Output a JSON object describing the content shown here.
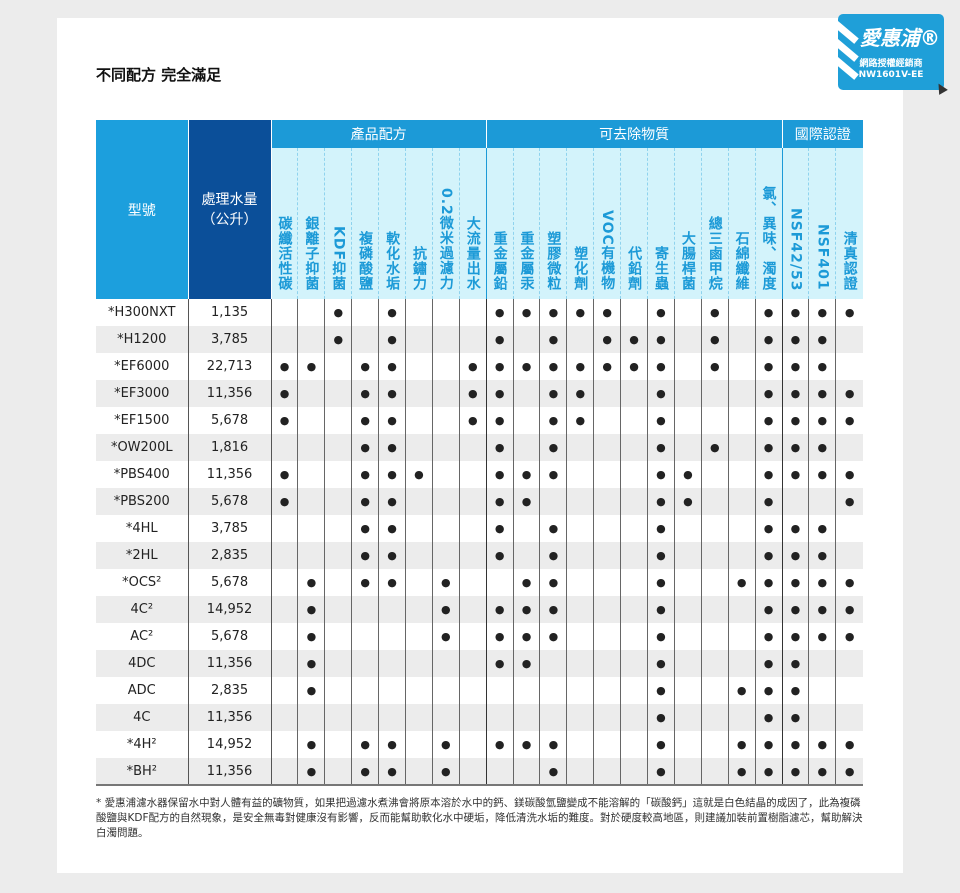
{
  "title": "不同配方 完全滿足",
  "badge": {
    "brand": "愛惠浦®",
    "line1": "網路授權經銷商",
    "line2": "NW1601V-EE"
  },
  "headers": {
    "model": "型號",
    "volume": "處理水量（公升）",
    "groups": [
      {
        "label": "產品配方",
        "span": 8
      },
      {
        "label": "可去除物質",
        "span": 11
      },
      {
        "label": "國際認證",
        "span": 3
      }
    ],
    "columns": [
      "碳纖活性碳",
      "銀離子抑菌",
      "KDF抑菌",
      "複磷酸鹽",
      "軟化水垢",
      "抗鏽力",
      "0.2微米過濾力",
      "大流量出水",
      "重金屬鉛",
      "重金屬汞",
      "塑膠微粒",
      "塑化劑",
      "VOC有機物",
      "代鉛劑",
      "寄生蟲",
      "大腸桿菌",
      "總三鹵甲烷",
      "石綿纖維",
      "氯、異味、濁度",
      "NSF42/53",
      "NSF401",
      "清真認證"
    ]
  },
  "dot_symbol": "●",
  "rows": [
    {
      "model": "*H300NXT",
      "volume": "1,135",
      "dots": [
        2,
        4,
        8,
        9,
        10,
        11,
        12,
        14,
        16,
        18,
        19,
        20,
        21
      ]
    },
    {
      "model": "*H1200",
      "volume": "3,785",
      "dots": [
        2,
        4,
        8,
        10,
        12,
        13,
        14,
        16,
        18,
        19,
        20
      ]
    },
    {
      "model": "*EF6000",
      "volume": "22,713",
      "dots": [
        0,
        1,
        3,
        4,
        7,
        8,
        9,
        10,
        11,
        12,
        13,
        14,
        16,
        18,
        19,
        20
      ]
    },
    {
      "model": "*EF3000",
      "volume": "11,356",
      "dots": [
        0,
        3,
        4,
        7,
        8,
        10,
        11,
        14,
        18,
        19,
        20,
        21
      ]
    },
    {
      "model": "*EF1500",
      "volume": "5,678",
      "dots": [
        0,
        3,
        4,
        7,
        8,
        10,
        11,
        14,
        18,
        19,
        20,
        21
      ]
    },
    {
      "model": "*OW200L",
      "volume": "1,816",
      "dots": [
        3,
        4,
        8,
        10,
        14,
        16,
        18,
        19,
        20
      ]
    },
    {
      "model": "*PBS400",
      "volume": "11,356",
      "dots": [
        0,
        3,
        4,
        5,
        8,
        9,
        10,
        14,
        15,
        18,
        19,
        20,
        21
      ]
    },
    {
      "model": "*PBS200",
      "volume": "5,678",
      "dots": [
        0,
        3,
        4,
        8,
        9,
        14,
        15,
        18,
        21
      ]
    },
    {
      "model": "*4HL",
      "volume": "3,785",
      "dots": [
        3,
        4,
        8,
        10,
        14,
        18,
        19,
        20
      ]
    },
    {
      "model": "*2HL",
      "volume": "2,835",
      "dots": [
        3,
        4,
        8,
        10,
        14,
        18,
        19,
        20
      ]
    },
    {
      "model": "*OCS²",
      "volume": "5,678",
      "dots": [
        1,
        3,
        4,
        6,
        9,
        10,
        14,
        17,
        18,
        19,
        20,
        21
      ]
    },
    {
      "model": "4C²",
      "volume": "14,952",
      "dots": [
        1,
        6,
        8,
        9,
        10,
        14,
        18,
        19,
        20,
        21
      ]
    },
    {
      "model": "AC²",
      "volume": "5,678",
      "dots": [
        1,
        6,
        8,
        9,
        10,
        14,
        18,
        19,
        20,
        21
      ]
    },
    {
      "model": "4DC",
      "volume": "11,356",
      "dots": [
        1,
        8,
        9,
        14,
        18,
        19
      ]
    },
    {
      "model": "ADC",
      "volume": "2,835",
      "dots": [
        1,
        14,
        17,
        18,
        19
      ]
    },
    {
      "model": "4C",
      "volume": "11,356",
      "dots": [
        14,
        18,
        19
      ]
    },
    {
      "model": "*4H²",
      "volume": "14,952",
      "dots": [
        1,
        3,
        4,
        6,
        8,
        9,
        10,
        14,
        17,
        18,
        19,
        20,
        21
      ]
    },
    {
      "model": "*BH²",
      "volume": "11,356",
      "dots": [
        1,
        3,
        4,
        6,
        10,
        14,
        17,
        18,
        19,
        20,
        21
      ]
    }
  ],
  "footnote": "* 愛惠浦濾水器保留水中對人體有益的礦物質，如果把過濾水煮沸會將原本溶於水中的鈣、鎂碳酸氫鹽變成不能溶解的「碳酸鈣」這就是白色結晶的成因了，此為複磷酸鹽與KDF配方的自然現象，是安全無毒對健康沒有影響，反而能幫助軟化水中硬垢，降低清洗水垢的難度。對於硬度較高地區，則建議加裝前置樹脂濾芯，幫助解決白濁問題。",
  "colors": {
    "header_blue": "#1c9ad7",
    "volume_header": "#0b4f99",
    "subheader_bg": "#d3f3fb",
    "row_alt": "#ececec"
  }
}
